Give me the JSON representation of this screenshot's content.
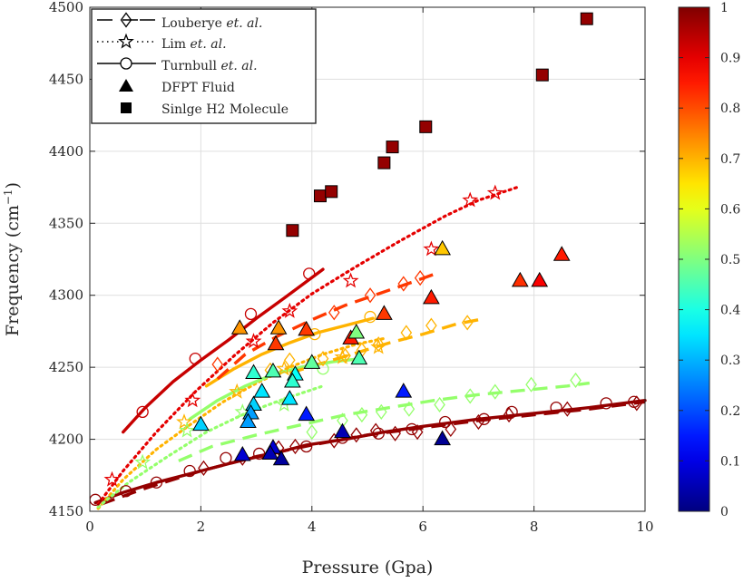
{
  "chart_data": {
    "type": "scatter",
    "xlabel": "Pressure (Gpa)",
    "ylabel_main": "Frequency (cm",
    "ylabel_sup": "−1",
    "ylabel_close": ")",
    "xlim": [
      0,
      10
    ],
    "ylim": [
      4150,
      4500
    ],
    "xticks": [
      0,
      2,
      4,
      6,
      8,
      10
    ],
    "yticks": [
      4150,
      4200,
      4250,
      4300,
      4350,
      4400,
      4450,
      4500
    ],
    "colorbar": {
      "min": 0,
      "max": 1,
      "ticks": [
        "0",
        "0.1",
        "0.2",
        "0.3",
        "0.4",
        "0.5",
        "0.6",
        "0.7",
        "0.8",
        "0.9",
        "1"
      ]
    },
    "legend": [
      {
        "key": "louberye",
        "label": "Louberye ",
        "label_em": "et. al.",
        "line": "dashed",
        "marker": "diamond"
      },
      {
        "key": "lim",
        "label": "Lim ",
        "label_em": "et. al.",
        "line": "dotted",
        "marker": "pentagram"
      },
      {
        "key": "turnbull",
        "label": "Turnbull ",
        "label_em": "et. al.",
        "line": "solid",
        "marker": "circle"
      },
      {
        "key": "dfpt",
        "label": "DFPT Fluid",
        "label_em": "",
        "line": "none",
        "marker": "triangle"
      },
      {
        "key": "single",
        "label": "Sinlge H2 Molecule",
        "label_em": "",
        "line": "none",
        "marker": "square"
      }
    ],
    "curves": [
      {
        "name": "Turnbull c0.98",
        "style": "solid",
        "c": 0.98,
        "x": [
          0.1,
          0.6,
          1.2,
          2.0,
          2.8,
          3.3,
          3.9,
          4.6,
          5.3,
          6.0,
          7.0,
          8.0,
          9.0,
          10.0
        ],
        "y": [
          4156,
          4163,
          4170,
          4178,
          4186,
          4190,
          4196,
          4200,
          4205,
          4209,
          4214,
          4218,
          4222,
          4227
        ]
      },
      {
        "name": "Louberye c0.98",
        "style": "dashed",
        "c": 0.98,
        "x": [
          0.2,
          1.0,
          2.0,
          3.0,
          4.0,
          5.0,
          6.0,
          7.0,
          8.0,
          9.0,
          10.0
        ],
        "y": [
          4155,
          4166,
          4178,
          4188,
          4196,
          4203,
          4208,
          4213,
          4217,
          4221,
          4226
        ]
      },
      {
        "name": "Lim c0.70",
        "style": "dotted",
        "c": 0.7,
        "x": [
          0.15,
          0.6,
          1.2,
          1.8,
          2.4,
          3.0,
          3.6,
          4.2,
          4.8,
          5.3
        ],
        "y": [
          4152,
          4172,
          4193,
          4210,
          4226,
          4239,
          4250,
          4259,
          4266,
          4270
        ]
      },
      {
        "name": "Lim c0.52",
        "style": "dotted",
        "c": 0.52,
        "x": [
          0.15,
          0.7,
          1.4,
          2.1,
          2.8,
          3.5,
          4.2
        ],
        "y": [
          4153,
          4170,
          4188,
          4205,
          4218,
          4228,
          4237
        ]
      },
      {
        "name": "Lim c0.90",
        "style": "dotted",
        "c": 0.9,
        "x": [
          0.15,
          0.6,
          1.2,
          1.9,
          2.6,
          3.3,
          4.0,
          4.8,
          5.6,
          6.4,
          7.0,
          7.7
        ],
        "y": [
          4155,
          4178,
          4205,
          4233,
          4258,
          4281,
          4301,
          4320,
          4338,
          4355,
          4366,
          4375
        ]
      },
      {
        "name": "Turnbull c0.93",
        "style": "solid",
        "c": 0.93,
        "x": [
          0.6,
          1.0,
          1.5,
          2.0,
          2.5,
          3.0,
          3.5,
          4.2
        ],
        "y": [
          4205,
          4222,
          4240,
          4255,
          4269,
          4284,
          4298,
          4318
        ]
      },
      {
        "name": "Turnbull c0.70",
        "style": "solid",
        "c": 0.7,
        "x": [
          2.1,
          2.6,
          3.1,
          3.6,
          4.1,
          4.6,
          5.1
        ],
        "y": [
          4237,
          4249,
          4259,
          4267,
          4274,
          4279,
          4284
        ]
      },
      {
        "name": "Turnbull c0.52",
        "style": "solid",
        "c": 0.52,
        "x": [
          1.8,
          2.3,
          2.8,
          3.3,
          3.8,
          4.4,
          4.9
        ],
        "y": [
          4214,
          4227,
          4237,
          4245,
          4250,
          4254,
          4256
        ]
      },
      {
        "name": "Louberye c0.82",
        "style": "dashed",
        "c": 0.82,
        "x": [
          2.3,
          2.8,
          3.4,
          4.0,
          4.6,
          5.2,
          5.8,
          6.3
        ],
        "y": [
          4242,
          4259,
          4272,
          4283,
          4293,
          4301,
          4309,
          4316
        ]
      },
      {
        "name": "Louberye c0.70",
        "style": "dashed",
        "c": 0.7,
        "x": [
          3.6,
          4.2,
          4.8,
          5.4,
          6.0,
          6.6,
          7.0
        ],
        "y": [
          4246,
          4253,
          4260,
          4267,
          4273,
          4280,
          4283
        ]
      },
      {
        "name": "Louberye c0.52",
        "style": "dashed",
        "c": 0.52,
        "x": [
          1.6,
          2.2,
          3.0,
          3.8,
          4.6,
          5.4,
          6.2,
          7.0,
          7.8,
          8.6,
          9.0
        ],
        "y": [
          4185,
          4195,
          4203,
          4210,
          4217,
          4222,
          4227,
          4231,
          4234,
          4237,
          4239
        ]
      }
    ],
    "open_markers": [
      {
        "shape": "circle",
        "c": 0.98,
        "x": [
          0.1,
          0.65,
          1.2,
          1.8,
          2.45,
          3.05,
          3.9,
          4.55,
          5.2,
          5.8,
          6.4,
          7.1,
          7.6,
          8.4,
          9.3,
          9.8
        ],
        "y": [
          4158,
          4164,
          4170,
          4178,
          4187,
          4190,
          4195,
          4201,
          4204,
          4207,
          4212,
          4214,
          4219,
          4222,
          4225,
          4226
        ]
      },
      {
        "shape": "circle",
        "c": 0.93,
        "x": [
          0.95,
          1.9,
          2.9,
          3.95
        ],
        "y": [
          4219,
          4256,
          4287,
          4315
        ]
      },
      {
        "shape": "circle",
        "c": 0.7,
        "x": [
          4.05,
          5.05
        ],
        "y": [
          4273,
          4285
        ]
      },
      {
        "shape": "circle",
        "c": 0.52,
        "x": [
          4.2
        ],
        "y": [
          4249
        ]
      },
      {
        "shape": "diamond",
        "c": 0.98,
        "x": [
          2.05,
          2.75,
          3.4,
          3.7,
          4.4,
          4.8,
          5.15,
          5.5,
          5.9,
          6.5,
          7.0,
          7.55,
          8.6,
          9.85
        ],
        "y": [
          4180,
          4187,
          4194,
          4195,
          4199,
          4203,
          4206,
          4204,
          4205,
          4207,
          4212,
          4217,
          4221,
          4225
        ]
      },
      {
        "shape": "diamond",
        "c": 0.52,
        "x": [
          4.0,
          4.55,
          4.9,
          5.25,
          5.75,
          6.3,
          6.85,
          7.3,
          7.95,
          8.75
        ],
        "y": [
          4205,
          4213,
          4217,
          4219,
          4221,
          4224,
          4230,
          4233,
          4238,
          4241
        ]
      },
      {
        "shape": "diamond",
        "c": 0.7,
        "x": [
          3.25,
          3.6,
          4.2,
          4.6,
          4.9,
          5.2,
          5.7,
          6.15,
          6.8
        ],
        "y": [
          4248,
          4255,
          4256,
          4258,
          4262,
          4266,
          4274,
          4279,
          4281
        ]
      },
      {
        "shape": "diamond",
        "c": 0.82,
        "x": [
          2.3,
          4.4,
          5.05,
          5.65,
          5.95
        ],
        "y": [
          4252,
          4288,
          4300,
          4308,
          4312
        ]
      },
      {
        "shape": "pentagram",
        "c": 0.9,
        "x": [
          0.4,
          1.85,
          2.95,
          3.6,
          4.7,
          6.15,
          6.85,
          7.3
        ],
        "y": [
          4172,
          4227,
          4268,
          4289,
          4310,
          4332,
          4366,
          4371
        ]
      },
      {
        "shape": "pentagram",
        "c": 0.7,
        "x": [
          1.7,
          2.65,
          3.5,
          4.55,
          5.2
        ],
        "y": [
          4212,
          4233,
          4249,
          4257,
          4264
        ]
      },
      {
        "shape": "pentagram",
        "c": 0.52,
        "x": [
          0.95,
          1.75,
          2.75,
          3.5
        ],
        "y": [
          4184,
          4206,
          4219,
          4224
        ]
      }
    ],
    "dfpt_fluid": [
      {
        "x": 2.7,
        "y": 4277,
        "c": 0.73
      },
      {
        "x": 3.4,
        "y": 4277,
        "c": 0.73
      },
      {
        "x": 3.9,
        "y": 4276,
        "c": 0.82
      },
      {
        "x": 3.35,
        "y": 4266,
        "c": 0.82
      },
      {
        "x": 4.7,
        "y": 4270,
        "c": 0.85
      },
      {
        "x": 5.3,
        "y": 4287,
        "c": 0.82
      },
      {
        "x": 6.15,
        "y": 4298,
        "c": 0.85
      },
      {
        "x": 6.35,
        "y": 4332,
        "c": 0.68
      },
      {
        "x": 7.75,
        "y": 4310,
        "c": 0.83
      },
      {
        "x": 8.1,
        "y": 4310,
        "c": 0.88
      },
      {
        "x": 8.5,
        "y": 4328,
        "c": 0.85
      },
      {
        "x": 4.8,
        "y": 4274,
        "c": 0.5
      },
      {
        "x": 4.85,
        "y": 4256,
        "c": 0.45
      },
      {
        "x": 4.0,
        "y": 4253,
        "c": 0.47
      },
      {
        "x": 3.3,
        "y": 4247,
        "c": 0.45
      },
      {
        "x": 2.95,
        "y": 4246,
        "c": 0.42
      },
      {
        "x": 3.7,
        "y": 4245,
        "c": 0.38
      },
      {
        "x": 3.65,
        "y": 4240,
        "c": 0.42
      },
      {
        "x": 3.1,
        "y": 4233,
        "c": 0.35
      },
      {
        "x": 3.6,
        "y": 4228,
        "c": 0.35
      },
      {
        "x": 2.95,
        "y": 4224,
        "c": 0.33
      },
      {
        "x": 2.9,
        "y": 4218,
        "c": 0.28
      },
      {
        "x": 2.85,
        "y": 4212,
        "c": 0.28
      },
      {
        "x": 2.0,
        "y": 4210,
        "c": 0.33
      },
      {
        "x": 3.9,
        "y": 4217,
        "c": 0.15
      },
      {
        "x": 5.65,
        "y": 4233,
        "c": 0.15
      },
      {
        "x": 2.75,
        "y": 4189,
        "c": 0.08
      },
      {
        "x": 3.3,
        "y": 4194,
        "c": 0.08
      },
      {
        "x": 3.25,
        "y": 4190,
        "c": 0.05
      },
      {
        "x": 3.45,
        "y": 4186,
        "c": 0.03
      },
      {
        "x": 4.55,
        "y": 4205,
        "c": 0.05
      },
      {
        "x": 6.35,
        "y": 4200,
        "c": 0.02
      }
    ],
    "single_h2": [
      {
        "x": 3.65,
        "y": 4345,
        "c": 0.98
      },
      {
        "x": 4.15,
        "y": 4369,
        "c": 0.98
      },
      {
        "x": 4.35,
        "y": 4372,
        "c": 0.98
      },
      {
        "x": 5.3,
        "y": 4392,
        "c": 0.98
      },
      {
        "x": 5.45,
        "y": 4403,
        "c": 0.98
      },
      {
        "x": 6.05,
        "y": 4417,
        "c": 0.98
      },
      {
        "x": 8.15,
        "y": 4453,
        "c": 0.98
      },
      {
        "x": 8.95,
        "y": 4492,
        "c": 0.98
      }
    ]
  }
}
